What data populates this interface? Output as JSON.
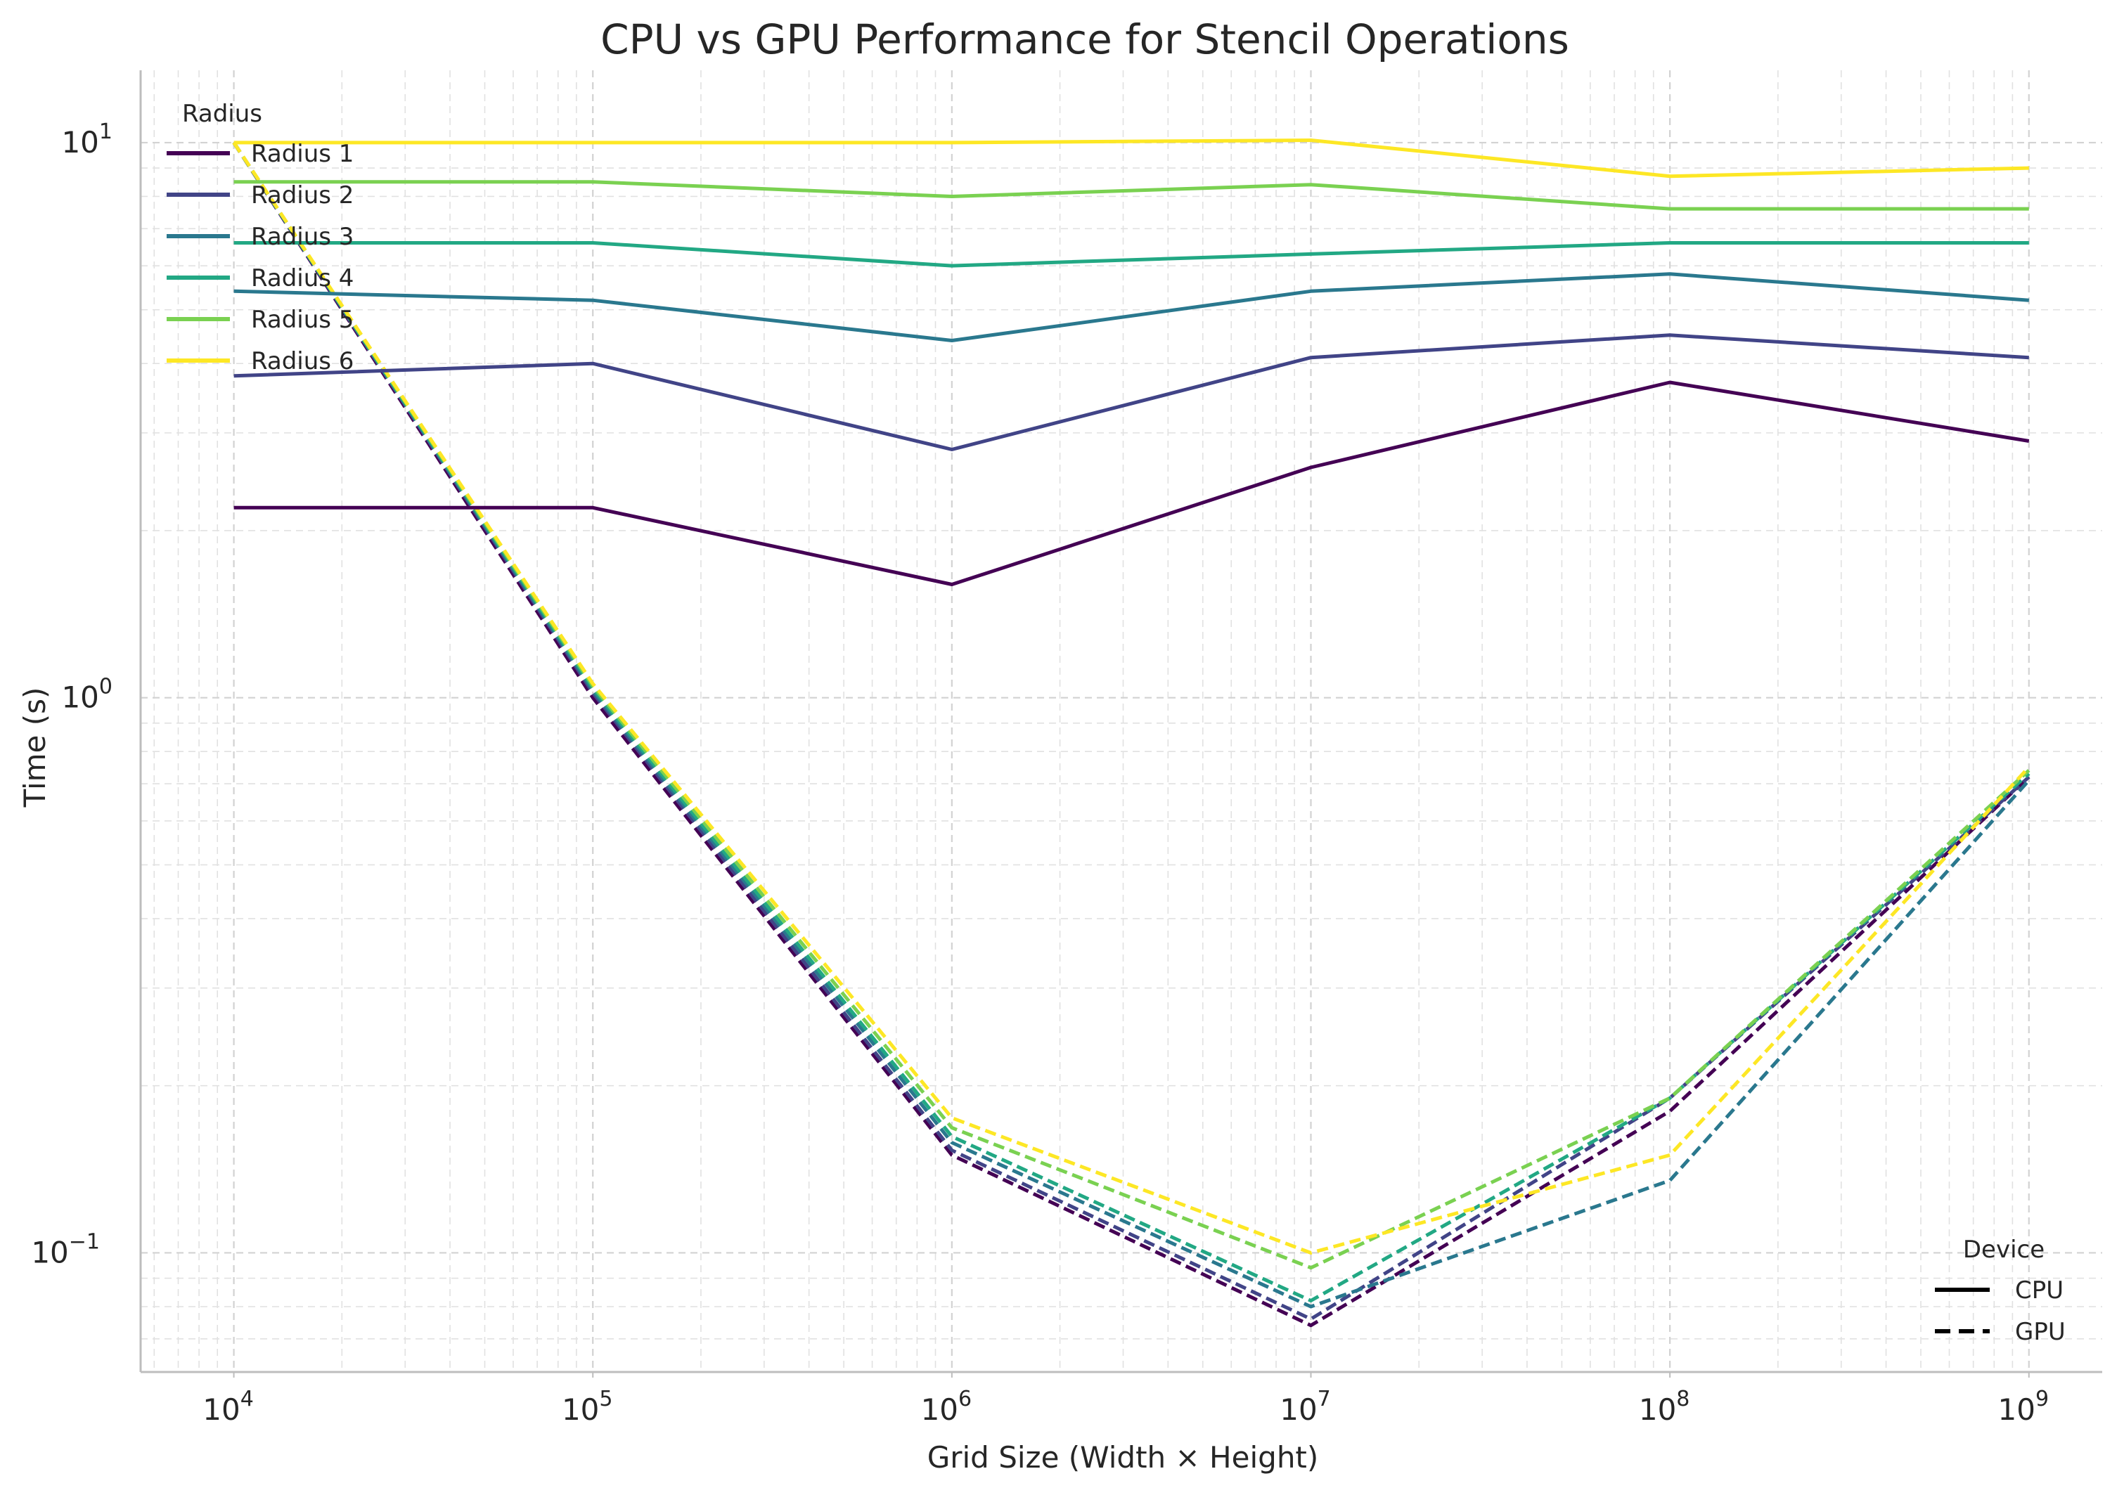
{
  "chart_data": {
    "type": "line",
    "title": "CPU vs GPU Performance for Stencil Operations",
    "xlabel": "Grid Size (Width × Height)",
    "ylabel": "Time (s)",
    "xscale": "log",
    "yscale": "log",
    "xlim": [
      5500,
      1600000000
    ],
    "ylim": [
      0.061,
      13.5
    ],
    "grid": true,
    "x": [
      10000,
      100000,
      1000000,
      10000000,
      100000000,
      1000000000
    ],
    "x_ticks": [
      {
        "value": 10000,
        "base": "10",
        "exp": "4"
      },
      {
        "value": 100000,
        "base": "10",
        "exp": "5"
      },
      {
        "value": 1000000,
        "base": "10",
        "exp": "6"
      },
      {
        "value": 10000000,
        "base": "10",
        "exp": "7"
      },
      {
        "value": 100000000,
        "base": "10",
        "exp": "8"
      },
      {
        "value": 1000000000,
        "base": "10",
        "exp": "9"
      }
    ],
    "y_ticks": [
      {
        "value": 0.1,
        "base": "10",
        "exp": "−1"
      },
      {
        "value": 1,
        "base": "10",
        "exp": "0"
      },
      {
        "value": 10,
        "base": "10",
        "exp": "1"
      }
    ],
    "legend_radius": {
      "title": "Radius",
      "placement": "top-left",
      "entries": [
        "Radius 1",
        "Radius 2",
        "Radius 3",
        "Radius 4",
        "Radius 5",
        "Radius 6"
      ]
    },
    "legend_device": {
      "title": "Device",
      "placement": "lower-right",
      "entries": [
        {
          "label": "CPU",
          "style": "solid"
        },
        {
          "label": "GPU",
          "style": "dashed"
        }
      ]
    },
    "series": [
      {
        "name": "Radius 1",
        "device": "CPU",
        "color": "#440154",
        "values": [
          2.2,
          2.2,
          1.6,
          2.6,
          3.7,
          2.9
        ]
      },
      {
        "name": "Radius 2",
        "device": "CPU",
        "color": "#414487",
        "values": [
          3.8,
          4.0,
          2.8,
          4.1,
          4.5,
          4.1
        ]
      },
      {
        "name": "Radius 3",
        "device": "CPU",
        "color": "#2a788e",
        "values": [
          5.4,
          5.2,
          4.4,
          5.4,
          5.8,
          5.2
        ]
      },
      {
        "name": "Radius 4",
        "device": "CPU",
        "color": "#22a884",
        "values": [
          6.6,
          6.6,
          6.0,
          6.3,
          6.6,
          6.6
        ]
      },
      {
        "name": "Radius 5",
        "device": "CPU",
        "color": "#7ad151",
        "values": [
          8.5,
          8.5,
          8.0,
          8.4,
          7.6,
          7.6
        ]
      },
      {
        "name": "Radius 6",
        "device": "CPU",
        "color": "#fde725",
        "values": [
          10.0,
          10.0,
          10.0,
          10.1,
          8.7,
          9.0
        ]
      },
      {
        "name": "Radius 1",
        "device": "GPU",
        "color": "#440154",
        "values": [
          10.0,
          1.0,
          0.15,
          0.074,
          0.18,
          0.72
        ]
      },
      {
        "name": "Radius 2",
        "device": "GPU",
        "color": "#414487",
        "values": [
          10.0,
          1.02,
          0.153,
          0.076,
          0.19,
          0.72
        ]
      },
      {
        "name": "Radius 3",
        "device": "GPU",
        "color": "#2a788e",
        "values": [
          10.0,
          1.03,
          0.158,
          0.08,
          0.135,
          0.71
        ]
      },
      {
        "name": "Radius 4",
        "device": "GPU",
        "color": "#22a884",
        "values": [
          10.0,
          1.04,
          0.162,
          0.082,
          0.19,
          0.73
        ]
      },
      {
        "name": "Radius 5",
        "device": "GPU",
        "color": "#7ad151",
        "values": [
          10.0,
          1.05,
          0.168,
          0.094,
          0.19,
          0.74
        ]
      },
      {
        "name": "Radius 6",
        "device": "GPU",
        "color": "#fde725",
        "values": [
          10.0,
          1.06,
          0.175,
          0.1,
          0.15,
          0.75
        ]
      }
    ]
  }
}
